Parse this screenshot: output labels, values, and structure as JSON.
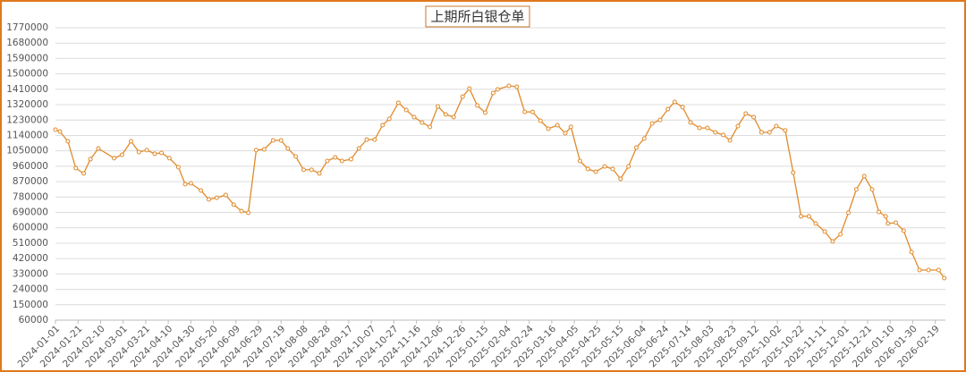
{
  "chart_data": {
    "type": "line",
    "title": "上期所白银仓单",
    "color": "#e08a2a",
    "grid": true,
    "x": [
      "2024-01-01",
      "2024-01-05",
      "2024-01-12",
      "2024-01-19",
      "2024-01-26",
      "2024-02-01",
      "2024-02-08",
      "2024-02-22",
      "2024-02-29",
      "2024-03-08",
      "2024-03-15",
      "2024-03-22",
      "2024-03-29",
      "2024-04-04",
      "2024-04-11",
      "2024-04-19",
      "2024-04-25",
      "2024-04-30",
      "2024-05-09",
      "2024-05-16",
      "2024-05-23",
      "2024-05-31",
      "2024-06-07",
      "2024-06-14",
      "2024-06-20",
      "2024-06-27",
      "2024-07-04",
      "2024-07-12",
      "2024-07-19",
      "2024-07-25",
      "2024-08-01",
      "2024-08-08",
      "2024-08-15",
      "2024-08-22",
      "2024-08-29",
      "2024-09-05",
      "2024-09-11",
      "2024-09-19",
      "2024-09-26",
      "2024-10-03",
      "2024-10-10",
      "2024-10-17",
      "2024-10-23",
      "2024-10-31",
      "2024-11-07",
      "2024-11-14",
      "2024-11-21",
      "2024-11-28",
      "2024-12-05",
      "2024-12-12",
      "2024-12-19",
      "2024-12-27",
      "2025-01-02",
      "2025-01-09",
      "2025-01-16",
      "2025-01-23",
      "2025-01-27",
      "2025-02-06",
      "2025-02-13",
      "2025-02-20",
      "2025-02-27",
      "2025-03-06",
      "2025-03-13",
      "2025-03-21",
      "2025-03-28",
      "2025-04-02",
      "2025-04-10",
      "2025-04-17",
      "2025-04-24",
      "2025-05-02",
      "2025-05-09",
      "2025-05-16",
      "2025-05-23",
      "2025-05-30",
      "2025-06-06",
      "2025-06-13",
      "2025-06-20",
      "2025-06-27",
      "2025-07-03",
      "2025-07-10",
      "2025-07-17",
      "2025-07-25",
      "2025-08-01",
      "2025-08-08",
      "2025-08-15",
      "2025-08-21",
      "2025-08-28",
      "2025-09-04",
      "2025-09-11",
      "2025-09-18",
      "2025-09-25",
      "2025-10-01",
      "2025-10-09",
      "2025-10-16",
      "2025-10-23",
      "2025-10-30",
      "2025-11-05",
      "2025-11-13",
      "2025-11-20",
      "2025-11-27",
      "2025-12-04",
      "2025-12-11",
      "2025-12-18",
      "2025-12-25",
      "2025-12-31",
      "2026-01-06",
      "2026-01-08",
      "2026-01-15",
      "2026-01-22",
      "2026-01-29",
      "2026-02-05",
      "2026-02-13",
      "2026-02-22",
      "2026-02-27"
    ],
    "values": [
      1174000,
      1163000,
      1106000,
      949000,
      918000,
      1001000,
      1064000,
      1007000,
      1027000,
      1106000,
      1043000,
      1054000,
      1033000,
      1038000,
      1007000,
      954000,
      855000,
      860000,
      818000,
      766000,
      776000,
      792000,
      735000,
      698000,
      688000,
      1054000,
      1059000,
      1111000,
      1111000,
      1064000,
      1017000,
      939000,
      939000,
      918000,
      991000,
      1012000,
      991000,
      1001000,
      1064000,
      1116000,
      1116000,
      1200000,
      1237000,
      1331000,
      1289000,
      1247000,
      1216000,
      1190000,
      1310000,
      1263000,
      1247000,
      1367000,
      1414000,
      1315000,
      1273000,
      1388000,
      1409000,
      1430000,
      1425000,
      1278000,
      1278000,
      1226000,
      1179000,
      1200000,
      1153000,
      1190000,
      991000,
      944000,
      928000,
      959000,
      944000,
      886000,
      959000,
      1069000,
      1122000,
      1210000,
      1231000,
      1294000,
      1336000,
      1305000,
      1216000,
      1184000,
      1184000,
      1158000,
      1143000,
      1111000,
      1195000,
      1268000,
      1247000,
      1158000,
      1158000,
      1195000,
      1169000,
      923000,
      667000,
      667000,
      625000,
      578000,
      520000,
      562000,
      688000,
      824000,
      902000,
      824000,
      693000,
      667000,
      625000,
      630000,
      583000,
      458000,
      353000,
      353000,
      353000,
      306000
    ],
    "xlim": [
      "2024-01-01",
      "2026-02-28"
    ],
    "xticks": [
      "2024-01-01",
      "2024-01-21",
      "2024-02-10",
      "2024-03-01",
      "2024-03-21",
      "2024-04-10",
      "2024-04-30",
      "2024-05-20",
      "2024-06-09",
      "2024-06-29",
      "2024-07-19",
      "2024-08-08",
      "2024-08-28",
      "2024-09-17",
      "2024-10-07",
      "2024-10-27",
      "2024-11-16",
      "2024-12-06",
      "2024-12-26",
      "2025-01-15",
      "2025-02-04",
      "2025-02-24",
      "2025-03-16",
      "2025-04-05",
      "2025-04-25",
      "2025-05-15",
      "2025-06-04",
      "2025-06-24",
      "2025-07-14",
      "2025-08-03",
      "2025-08-23",
      "2025-09-12",
      "2025-10-02",
      "2025-10-22",
      "2025-11-11",
      "2025-12-01",
      "2025-12-21",
      "2026-01-10",
      "2026-01-30",
      "2026-02-19"
    ],
    "ylim": [
      60000,
      1770000
    ],
    "yticks": [
      60000,
      150000,
      240000,
      330000,
      420000,
      510000,
      600000,
      690000,
      780000,
      870000,
      960000,
      1050000,
      1140000,
      1230000,
      1320000,
      1410000,
      1500000,
      1590000,
      1680000,
      1770000
    ]
  }
}
